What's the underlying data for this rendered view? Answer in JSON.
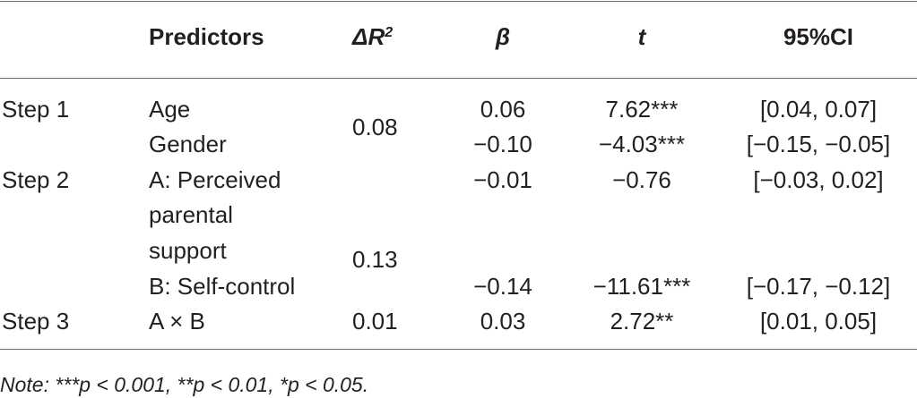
{
  "table": {
    "headers": {
      "step": "",
      "predictors": "Predictors",
      "delta_r2_prefix": "ΔR",
      "delta_r2_sup": "2",
      "beta": "β",
      "t": "t",
      "ci": "95%CI"
    },
    "steps": [
      {
        "label": "Step 1",
        "delta_r2": "0.08"
      },
      {
        "label": "Step 2",
        "delta_r2": "0.13"
      },
      {
        "label": "Step 3",
        "delta_r2": "0.01"
      }
    ],
    "rows": [
      {
        "predictor": "Age",
        "beta": "0.06",
        "t": "7.62***",
        "ci": "[0.04, 0.07]"
      },
      {
        "predictor": "Gender",
        "beta": "−0.10",
        "t": "−4.03***",
        "ci": "[−0.15, −0.05]"
      },
      {
        "predictor_lines": [
          "A: Perceived",
          "parental",
          "support"
        ],
        "beta": "−0.01",
        "t": "−0.76",
        "ci": "[−0.03, 0.02]"
      },
      {
        "predictor": "B: Self-control",
        "beta": "−0.14",
        "t": "−11.61***",
        "ci": "[−0.17, −0.12]"
      },
      {
        "predictor": "A × B",
        "beta": "0.03",
        "t": "2.72**",
        "ci": "[0.01, 0.05]"
      }
    ],
    "note": "Note: ***p < 0.001, **p < 0.01, *p < 0.05."
  }
}
